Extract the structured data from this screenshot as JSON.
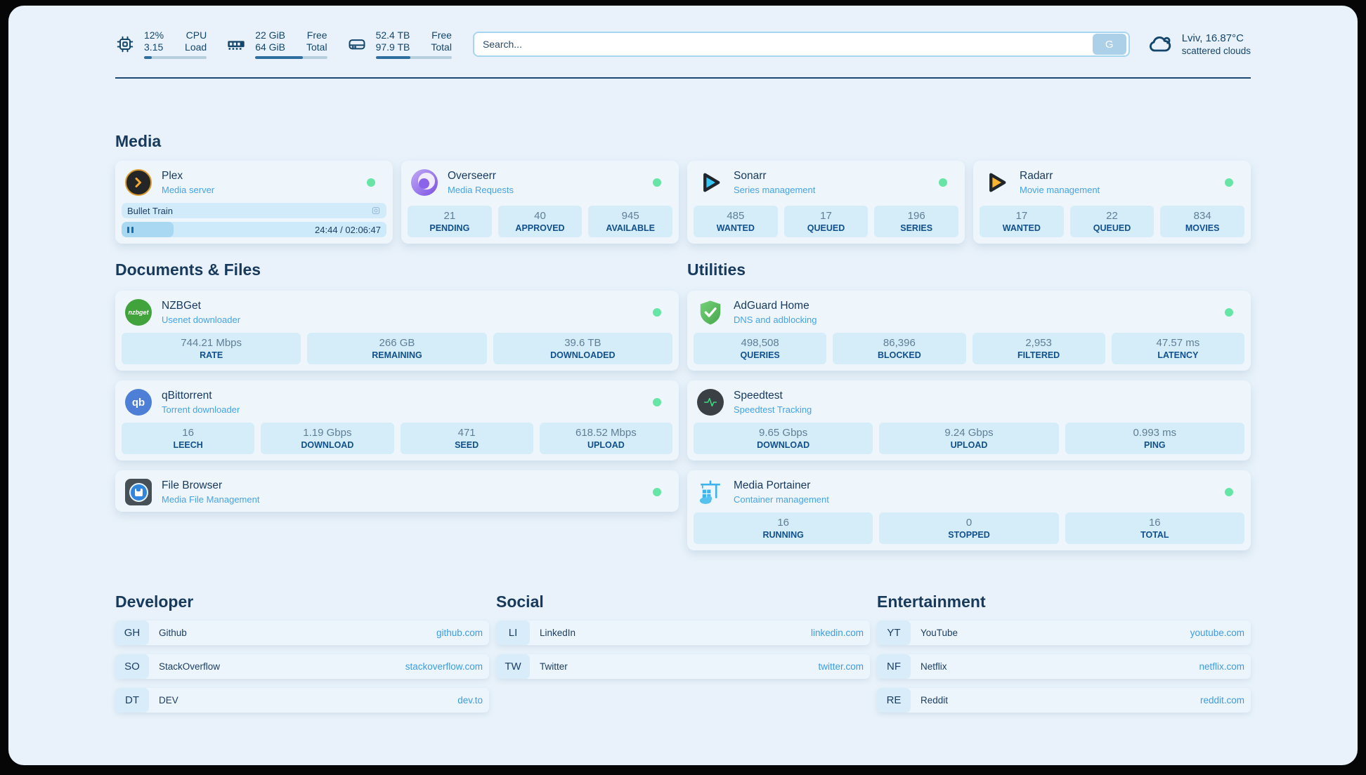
{
  "topbar": {
    "cpu": {
      "value1": "12%",
      "value2": "3.15",
      "label1": "CPU",
      "label2": "Load",
      "percent": 12
    },
    "memory": {
      "value1": "22 GiB",
      "value2": "64 GiB",
      "label1": "Free",
      "label2": "Total",
      "percent": 66
    },
    "disk": {
      "value1": "52.4 TB",
      "value2": "97.9 TB",
      "label1": "Free",
      "label2": "Total",
      "percent": 46
    },
    "search": {
      "placeholder": "Search...",
      "button_label": "G"
    },
    "weather": {
      "location": "Lviv, 16.87°C",
      "condition": "scattered clouds"
    }
  },
  "sections": {
    "media": {
      "title": "Media"
    },
    "documents": {
      "title": "Documents & Files"
    },
    "utilities": {
      "title": "Utilities"
    }
  },
  "services": {
    "plex": {
      "name": "Plex",
      "desc": "Media server",
      "status": "online",
      "now_playing": {
        "title": "Bullet Train",
        "time": "24:44 / 02:06:47",
        "percent": 19.5
      }
    },
    "overseerr": {
      "name": "Overseerr",
      "desc": "Media Requests",
      "status": "online",
      "stats": [
        {
          "value": "21",
          "label": "PENDING"
        },
        {
          "value": "40",
          "label": "APPROVED"
        },
        {
          "value": "945",
          "label": "AVAILABLE"
        }
      ]
    },
    "sonarr": {
      "name": "Sonarr",
      "desc": "Series management",
      "status": "online",
      "stats": [
        {
          "value": "485",
          "label": "WANTED"
        },
        {
          "value": "17",
          "label": "QUEUED"
        },
        {
          "value": "196",
          "label": "SERIES"
        }
      ]
    },
    "radarr": {
      "name": "Radarr",
      "desc": "Movie management",
      "status": "online",
      "stats": [
        {
          "value": "17",
          "label": "WANTED"
        },
        {
          "value": "22",
          "label": "QUEUED"
        },
        {
          "value": "834",
          "label": "MOVIES"
        }
      ]
    },
    "nzbget": {
      "name": "NZBGet",
      "desc": "Usenet downloader",
      "status": "online",
      "stats": [
        {
          "value": "744.21 Mbps",
          "label": "RATE"
        },
        {
          "value": "266 GB",
          "label": "REMAINING"
        },
        {
          "value": "39.6 TB",
          "label": "DOWNLOADED"
        }
      ]
    },
    "qbittorrent": {
      "name": "qBittorrent",
      "desc": "Torrent downloader",
      "status": "online",
      "stats": [
        {
          "value": "16",
          "label": "LEECH"
        },
        {
          "value": "1.19 Gbps",
          "label": "DOWNLOAD"
        },
        {
          "value": "471",
          "label": "SEED"
        },
        {
          "value": "618.52 Mbps",
          "label": "UPLOAD"
        }
      ]
    },
    "filebrowser": {
      "name": "File Browser",
      "desc": "Media File Management",
      "status": "online"
    },
    "adguard": {
      "name": "AdGuard Home",
      "desc": "DNS and adblocking",
      "status": "online",
      "stats": [
        {
          "value": "498,508",
          "label": "QUERIES"
        },
        {
          "value": "86,396",
          "label": "BLOCKED"
        },
        {
          "value": "2,953",
          "label": "FILTERED"
        },
        {
          "value": "47.57 ms",
          "label": "LATENCY"
        }
      ]
    },
    "speedtest": {
      "name": "Speedtest",
      "desc": "Speedtest Tracking",
      "stats": [
        {
          "value": "9.65 Gbps",
          "label": "DOWNLOAD"
        },
        {
          "value": "9.24 Gbps",
          "label": "UPLOAD"
        },
        {
          "value": "0.993 ms",
          "label": "PING"
        }
      ]
    },
    "portainer": {
      "name": "Media Portainer",
      "desc": "Container management",
      "status": "online",
      "stats": [
        {
          "value": "16",
          "label": "RUNNING"
        },
        {
          "value": "0",
          "label": "STOPPED"
        },
        {
          "value": "16",
          "label": "TOTAL"
        }
      ]
    }
  },
  "bookmarks": [
    {
      "title": "Developer",
      "links": [
        {
          "abbr": "GH",
          "name": "Github",
          "url": "github.com"
        },
        {
          "abbr": "SO",
          "name": "StackOverflow",
          "url": "stackoverflow.com"
        },
        {
          "abbr": "DT",
          "name": "DEV",
          "url": "dev.to"
        }
      ]
    },
    {
      "title": "Social",
      "links": [
        {
          "abbr": "LI",
          "name": "LinkedIn",
          "url": "linkedin.com"
        },
        {
          "abbr": "TW",
          "name": "Twitter",
          "url": "twitter.com"
        }
      ]
    },
    {
      "title": "Entertainment",
      "links": [
        {
          "abbr": "YT",
          "name": "YouTube",
          "url": "youtube.com"
        },
        {
          "abbr": "NF",
          "name": "Netflix",
          "url": "netflix.com"
        },
        {
          "abbr": "RE",
          "name": "Reddit",
          "url": "reddit.com"
        }
      ]
    }
  ],
  "colors": {
    "status_online": "#66e5a6",
    "accent_blue": "#46a3e6",
    "heading": "#17395c"
  }
}
